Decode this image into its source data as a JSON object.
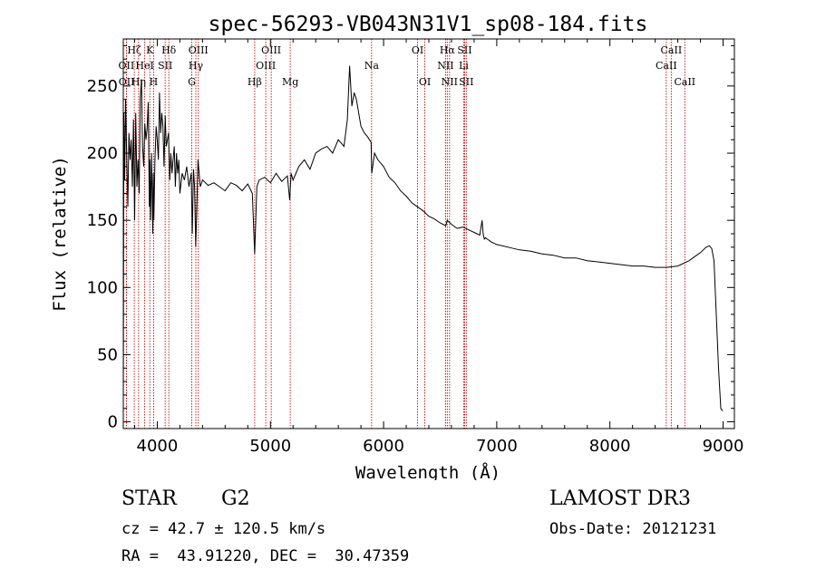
{
  "chart_data": {
    "type": "line",
    "title": "spec-56293-VB043N31V1_sp08-184.fits",
    "xlabel": "Wavelength (Å)",
    "ylabel": "Flux (relative)",
    "xlim": [
      3700,
      9100
    ],
    "ylim": [
      -5,
      285
    ],
    "xticks": [
      4000,
      5000,
      6000,
      7000,
      8000,
      9000
    ],
    "yticks": [
      0,
      50,
      100,
      150,
      200,
      250
    ],
    "series": [
      {
        "name": "flux",
        "x": [
          3700,
          3705,
          3712,
          3720,
          3730,
          3740,
          3750,
          3760,
          3770,
          3780,
          3790,
          3800,
          3810,
          3820,
          3830,
          3840,
          3850,
          3860,
          3870,
          3880,
          3890,
          3900,
          3910,
          3920,
          3930,
          3935,
          3940,
          3950,
          3960,
          3965,
          3970,
          3980,
          3990,
          4000,
          4010,
          4020,
          4030,
          4040,
          4050,
          4060,
          4070,
          4080,
          4090,
          4100,
          4110,
          4120,
          4130,
          4140,
          4150,
          4160,
          4170,
          4180,
          4190,
          4200,
          4220,
          4240,
          4260,
          4280,
          4300,
          4310,
          4320,
          4330,
          4340,
          4350,
          4360,
          4380,
          4400,
          4450,
          4500,
          4550,
          4600,
          4650,
          4700,
          4750,
          4800,
          4840,
          4861,
          4880,
          4900,
          4950,
          5000,
          5050,
          5100,
          5150,
          5170,
          5183,
          5200,
          5250,
          5300,
          5350,
          5400,
          5450,
          5500,
          5550,
          5600,
          5650,
          5680,
          5700,
          5720,
          5740,
          5760,
          5780,
          5800,
          5830,
          5860,
          5890,
          5895,
          5920,
          5950,
          6000,
          6050,
          6100,
          6150,
          6200,
          6250,
          6300,
          6350,
          6400,
          6450,
          6500,
          6550,
          6563,
          6600,
          6650,
          6700,
          6750,
          6800,
          6850,
          6870,
          6880,
          6890,
          6900,
          6950,
          7000,
          7100,
          7200,
          7300,
          7400,
          7500,
          7600,
          7700,
          7800,
          7900,
          8000,
          8100,
          8200,
          8300,
          8400,
          8500,
          8600,
          8700,
          8750,
          8800,
          8850,
          8880,
          8900,
          8920,
          8940,
          8960,
          8980,
          8995
        ],
        "y": [
          10,
          230,
          180,
          240,
          200,
          160,
          215,
          195,
          210,
          175,
          225,
          150,
          230,
          175,
          195,
          170,
          240,
          255,
          205,
          190,
          222,
          210,
          218,
          238,
          160,
          195,
          150,
          200,
          140,
          185,
          150,
          195,
          220,
          210,
          195,
          245,
          215,
          230,
          220,
          190,
          228,
          205,
          210,
          215,
          180,
          200,
          185,
          195,
          205,
          175,
          200,
          185,
          195,
          170,
          185,
          180,
          190,
          175,
          185,
          140,
          188,
          175,
          130,
          160,
          195,
          175,
          180,
          176,
          178,
          175,
          172,
          178,
          176,
          172,
          177,
          170,
          125,
          175,
          180,
          182,
          178,
          185,
          179,
          183,
          165,
          185,
          180,
          190,
          195,
          188,
          200,
          203,
          205,
          200,
          210,
          205,
          225,
          265,
          235,
          245,
          240,
          230,
          220,
          215,
          212,
          208,
          185,
          200,
          195,
          190,
          182,
          178,
          172,
          168,
          163,
          160,
          157,
          153,
          151,
          148,
          146,
          150,
          147,
          144,
          145,
          143,
          141,
          139,
          150,
          140,
          136,
          137,
          134,
          132,
          130,
          128,
          127,
          125,
          124,
          122,
          122,
          120,
          119,
          118,
          117,
          116,
          116,
          115,
          115,
          116,
          120,
          123,
          126,
          130,
          131,
          129,
          120,
          80,
          40,
          10,
          8
        ]
      }
    ],
    "line_markers": [
      {
        "label": "Hδ",
        "x": 4102,
        "row": 1
      },
      {
        "label": "SII",
        "x": 4070,
        "row": 2
      },
      {
        "label": "H",
        "x": 3968,
        "row": 3
      },
      {
        "label": "K",
        "x": 3934,
        "row": 1
      },
      {
        "label": "HeI",
        "x": 3889,
        "row": 2
      },
      {
        "label": "Hη",
        "x": 3835,
        "row": 3
      },
      {
        "label": "Hζ",
        "x": 3797,
        "row": 1
      },
      {
        "label": "OII",
        "x": 3727,
        "row": 2
      },
      {
        "label": "OII",
        "x": 3729,
        "row": 3
      },
      {
        "label": "OIII",
        "x": 4363,
        "row": 1
      },
      {
        "label": "Hγ",
        "x": 4341,
        "row": 2
      },
      {
        "label": "G",
        "x": 4305,
        "row": 3
      },
      {
        "label": "Hβ",
        "x": 4861,
        "row": 3
      },
      {
        "label": "OIII",
        "x": 5007,
        "row": 1
      },
      {
        "label": "OIII",
        "x": 4959,
        "row": 2
      },
      {
        "label": "Mg",
        "x": 5175,
        "row": 3
      },
      {
        "label": "Na",
        "x": 5894,
        "row": 2
      },
      {
        "label": "OI",
        "x": 6300,
        "row": 1
      },
      {
        "label": "OI",
        "x": 6364,
        "row": 3
      },
      {
        "label": "Hα",
        "x": 6563,
        "row": 1
      },
      {
        "label": "NII",
        "x": 6548,
        "row": 2
      },
      {
        "label": "NII",
        "x": 6583,
        "row": 3
      },
      {
        "label": "SII",
        "x": 6716,
        "row": 1
      },
      {
        "label": "Li",
        "x": 6708,
        "row": 2
      },
      {
        "label": "SII",
        "x": 6731,
        "row": 3
      },
      {
        "label": "CaII",
        "x": 8542,
        "row": 1
      },
      {
        "label": "CaII",
        "x": 8498,
        "row": 2
      },
      {
        "label": "CaII",
        "x": 8662,
        "row": 3
      }
    ]
  },
  "info": {
    "object_type": "STAR",
    "subclass": "G2",
    "survey": "LAMOST DR3",
    "cz": "cz = 42.7 ± 120.5 km/s",
    "obs_date": "Obs-Date: 20121231",
    "radec": "RA =  43.91220, DEC =  30.47359"
  },
  "colors": {
    "line": "#000000",
    "marker": "#cc0000",
    "axes": "#000000"
  }
}
